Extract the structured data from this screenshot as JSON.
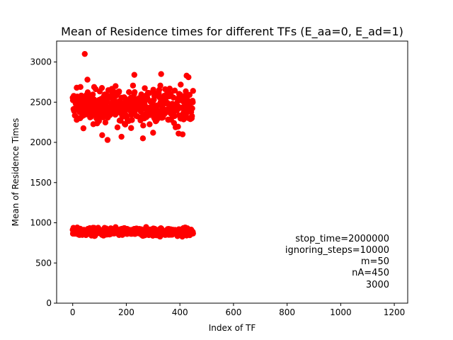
{
  "chart_data": {
    "type": "scatter",
    "title": "Mean of Residence times for different TFs (E_aa=0, E_ad=1)",
    "xlabel": "Index of TF",
    "ylabel": "Mean of Residence Times",
    "xlim": [
      -60,
      1250
    ],
    "ylim": [
      0,
      3260
    ],
    "xticks": [
      0,
      200,
      400,
      600,
      800,
      1000,
      1200
    ],
    "yticks": [
      0,
      500,
      1000,
      1500,
      2000,
      2500,
      3000
    ],
    "grid": false,
    "series": [
      {
        "color": "#ff0000",
        "clusters": [
          {
            "x_range": [
              0,
              449
            ],
            "mean": 2450,
            "spread": 150,
            "count": 450
          },
          {
            "x_range": [
              0,
              449
            ],
            "mean": 885,
            "spread": 35,
            "count": 450
          }
        ],
        "outliers": [
          [
            45,
            3100
          ],
          [
            230,
            2840
          ],
          [
            330,
            2850
          ],
          [
            425,
            2830
          ],
          [
            432,
            2810
          ],
          [
            130,
            2030
          ],
          [
            182,
            2070
          ],
          [
            262,
            2050
          ],
          [
            395,
            2110
          ],
          [
            410,
            2100
          ],
          [
            110,
            2090
          ],
          [
            300,
            2120
          ],
          [
            15,
            2680
          ],
          [
            55,
            2780
          ],
          [
            160,
            2700
          ]
        ]
      }
    ],
    "annotation_lines": [
      "stop_time=2000000",
      "ignoring_steps=10000",
      "m=50",
      "nA=450",
      "3000"
    ]
  }
}
